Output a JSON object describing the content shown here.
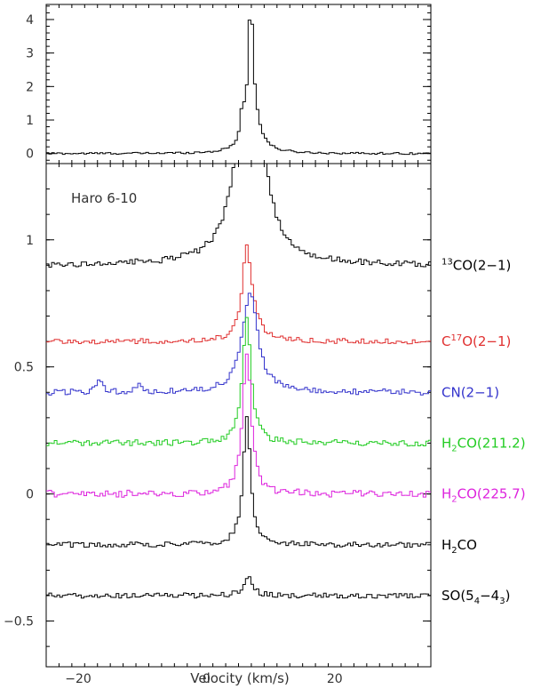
{
  "chart_data": [
    {
      "type": "line",
      "panel": "top",
      "xlim": [
        -25,
        35
      ],
      "ylim": [
        -0.3,
        4.45
      ],
      "y_ticks": [
        0,
        1,
        2,
        3,
        4
      ],
      "y_tick_labels": [
        "0",
        "1",
        "2",
        "3",
        "4"
      ],
      "series": [
        {
          "color": "#000000",
          "baseline": 0.0,
          "peaks": [
            {
              "v": 6.9,
              "amp": 3.7,
              "w": 0.45
            },
            {
              "v": 5.6,
              "amp": 0.8,
              "w": 0.35
            },
            {
              "v": 7.3,
              "amp": 0.9,
              "w": 1.4
            }
          ],
          "noise": 0.03
        }
      ]
    },
    {
      "type": "line",
      "panel": "bottom",
      "annotation": "Haro 6-10",
      "xlabel": "Velocity (km/s)",
      "xlim": [
        -25,
        35
      ],
      "ylim": [
        -0.68,
        1.3
      ],
      "x_ticks": [
        -20,
        0,
        20
      ],
      "x_tick_labels": [
        "−20",
        "0",
        "20"
      ],
      "y_ticks": [
        -0.5,
        0,
        0.5,
        1
      ],
      "y_tick_labels": [
        "−0.5",
        "0",
        "0.5",
        "1"
      ],
      "series": [
        {
          "label_main": "CO(2−1)",
          "sup": "13",
          "sup_pos": "prefix",
          "color": "#000000",
          "baseline": 0.9,
          "peaks": [
            {
              "v": 6.8,
              "amp": 1.0,
              "w": 2.0
            },
            {
              "v": 6.8,
              "amp": 0.4,
              "w": 0.6
            }
          ],
          "noise": 0.012
        },
        {
          "label_main": "C",
          "sup": "17",
          "label_tail": "O(2−1)",
          "color": "#e03030",
          "baseline": 0.6,
          "peaks": [
            {
              "v": 6.2,
              "amp": 0.28,
              "w": 0.7
            },
            {
              "v": 6.9,
              "amp": 0.12,
              "w": 1.4
            }
          ],
          "noise": 0.01
        },
        {
          "label_main": "CN(2−1)",
          "color": "#3333cc",
          "baseline": 0.4,
          "peaks": [
            {
              "v": 6.8,
              "amp": 0.4,
              "w": 1.4
            },
            {
              "v": -16.5,
              "amp": 0.05,
              "w": 0.5
            },
            {
              "v": -10.5,
              "amp": 0.04,
              "w": 0.5
            }
          ],
          "noise": 0.012
        },
        {
          "label_main": "H",
          "sub": "2",
          "label_tail": "CO(211.2)",
          "color": "#22cc22",
          "baseline": 0.2,
          "peaks": [
            {
              "v": 6.3,
              "amp": 0.5,
              "w": 0.8
            }
          ],
          "noise": 0.012
        },
        {
          "label_main": "H",
          "sub": "2",
          "label_tail": "CO(225.7)",
          "color": "#dd22dd",
          "baseline": 0.0,
          "peaks": [
            {
              "v": 6.3,
              "amp": 0.55,
              "w": 0.8
            }
          ],
          "noise": 0.014
        },
        {
          "label_main": "H",
          "sub": "2",
          "label_tail": "CO",
          "color": "#000000",
          "baseline": -0.2,
          "peaks": [
            {
              "v": 6.3,
              "amp": 0.5,
              "w": 0.7
            }
          ],
          "noise": 0.01
        },
        {
          "label_main": "SO(5",
          "sub": "4",
          "label_tail": "−4",
          "sub2": "3",
          "label_tail2": ")",
          "color": "#000000",
          "baseline": -0.4,
          "peaks": [
            {
              "v": 6.5,
              "amp": 0.08,
              "w": 0.8
            }
          ],
          "noise": 0.01
        }
      ]
    }
  ]
}
